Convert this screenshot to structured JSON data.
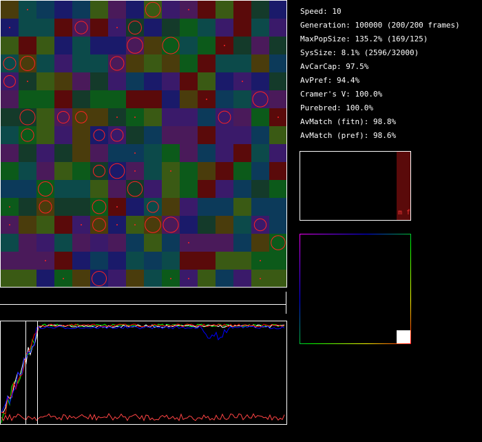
{
  "stats": [
    "Speed: 10",
    "Generation: 100000 (200/200 frames)",
    "MaxPopSize: 135.2% (169/125)",
    "SysSize: 8.1% (2596/32000)",
    "AvCarCap: 97.5%",
    "AvPref: 94.4%",
    "Cramer's V: 100.0%",
    "Purebred: 100.0%",
    "AvMatch (fitn): 98.8%",
    "AvMatch (pref): 98.6%"
  ],
  "histogram": {
    "label": "m f"
  }
}
